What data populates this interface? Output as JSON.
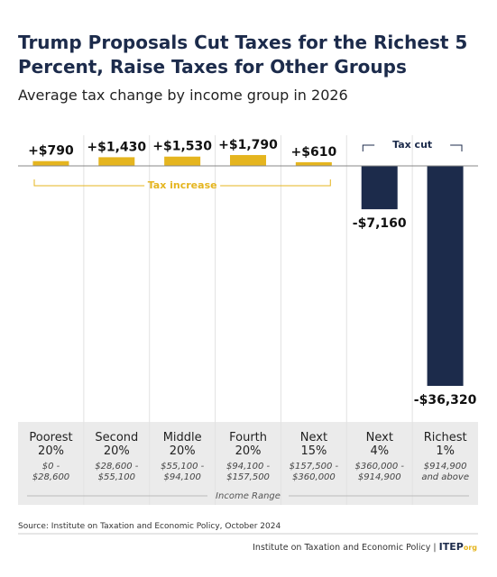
{
  "chart_data": {
    "type": "bar",
    "title": "Trump Proposals Cut Taxes for the Richest 5 Percent, Raise Taxes for Other Groups",
    "subtitle": "Average tax change by income group in 2026",
    "categories": [
      "Poorest\n20%",
      "Second\n20%",
      "Middle\n20%",
      "Fourth\n20%",
      "Next\n15%",
      "Next\n4%",
      "Richest\n1%"
    ],
    "income_ranges": [
      "$0 -\n$28,600",
      "$28,600 -\n$55,100",
      "$55,100 -\n$94,100",
      "$94,100 -\n$157,500",
      "$157,500 -\n$360,000",
      "$360,000 -\n$914,900",
      "$914,900\nand above"
    ],
    "x_label": "Income Range",
    "values": [
      790,
      1430,
      1530,
      1790,
      610,
      -7160,
      -36320
    ],
    "value_labels": [
      "+$790",
      "+$1,430",
      "+$1,530",
      "+$1,790",
      "+$610",
      "-$7,160",
      "-$36,320"
    ],
    "color_positive": "#e5b51f",
    "color_negative": "#1c2b4b",
    "annotations": {
      "increase": "Tax increase",
      "cut": "Tax cut"
    },
    "source": "Source: Institute on Taxation and Economic Policy, October 2024",
    "footer": "Institute on Taxation and Economic Policy",
    "logo": "ITEP",
    "logo_suffix": "org"
  }
}
